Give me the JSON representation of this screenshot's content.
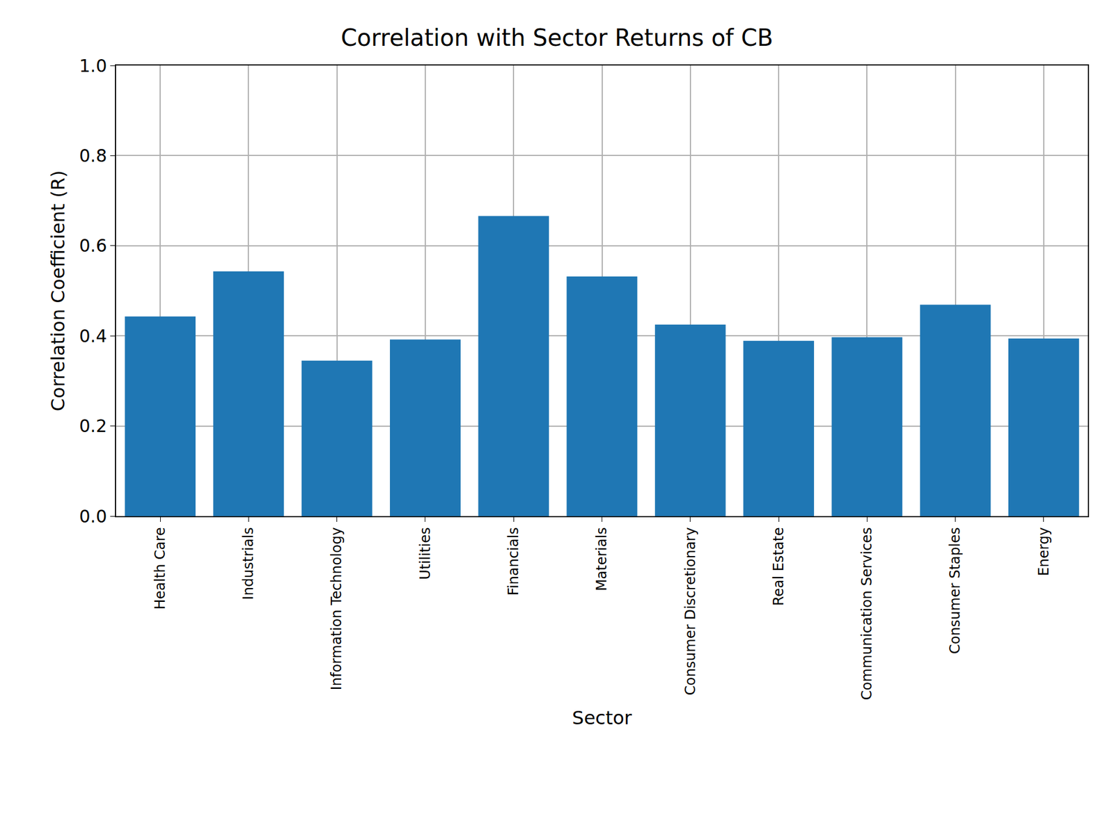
{
  "chart_data": {
    "type": "bar",
    "title": "Correlation with Sector Returns of CB",
    "x_label": "Sector",
    "y_label": "Correlation Coefficient (R)",
    "categories": [
      "Health Care",
      "Industrials",
      "Information Technology",
      "Utilities",
      "Financials",
      "Materials",
      "Consumer Discretionary",
      "Real Estate",
      "Communication Services",
      "Consumer Staples",
      "Energy"
    ],
    "values": [
      0.443,
      0.543,
      0.345,
      0.392,
      0.666,
      0.532,
      0.425,
      0.389,
      0.397,
      0.469,
      0.394
    ],
    "color": "#1f77b4",
    "ylim": [
      0,
      1
    ],
    "yticks": [
      {
        "value": 0,
        "label": "0.0"
      },
      0.2,
      0.4,
      0.6,
      0.8,
      {
        "value": 1,
        "label": "1.0"
      }
    ],
    "grid": true
  }
}
